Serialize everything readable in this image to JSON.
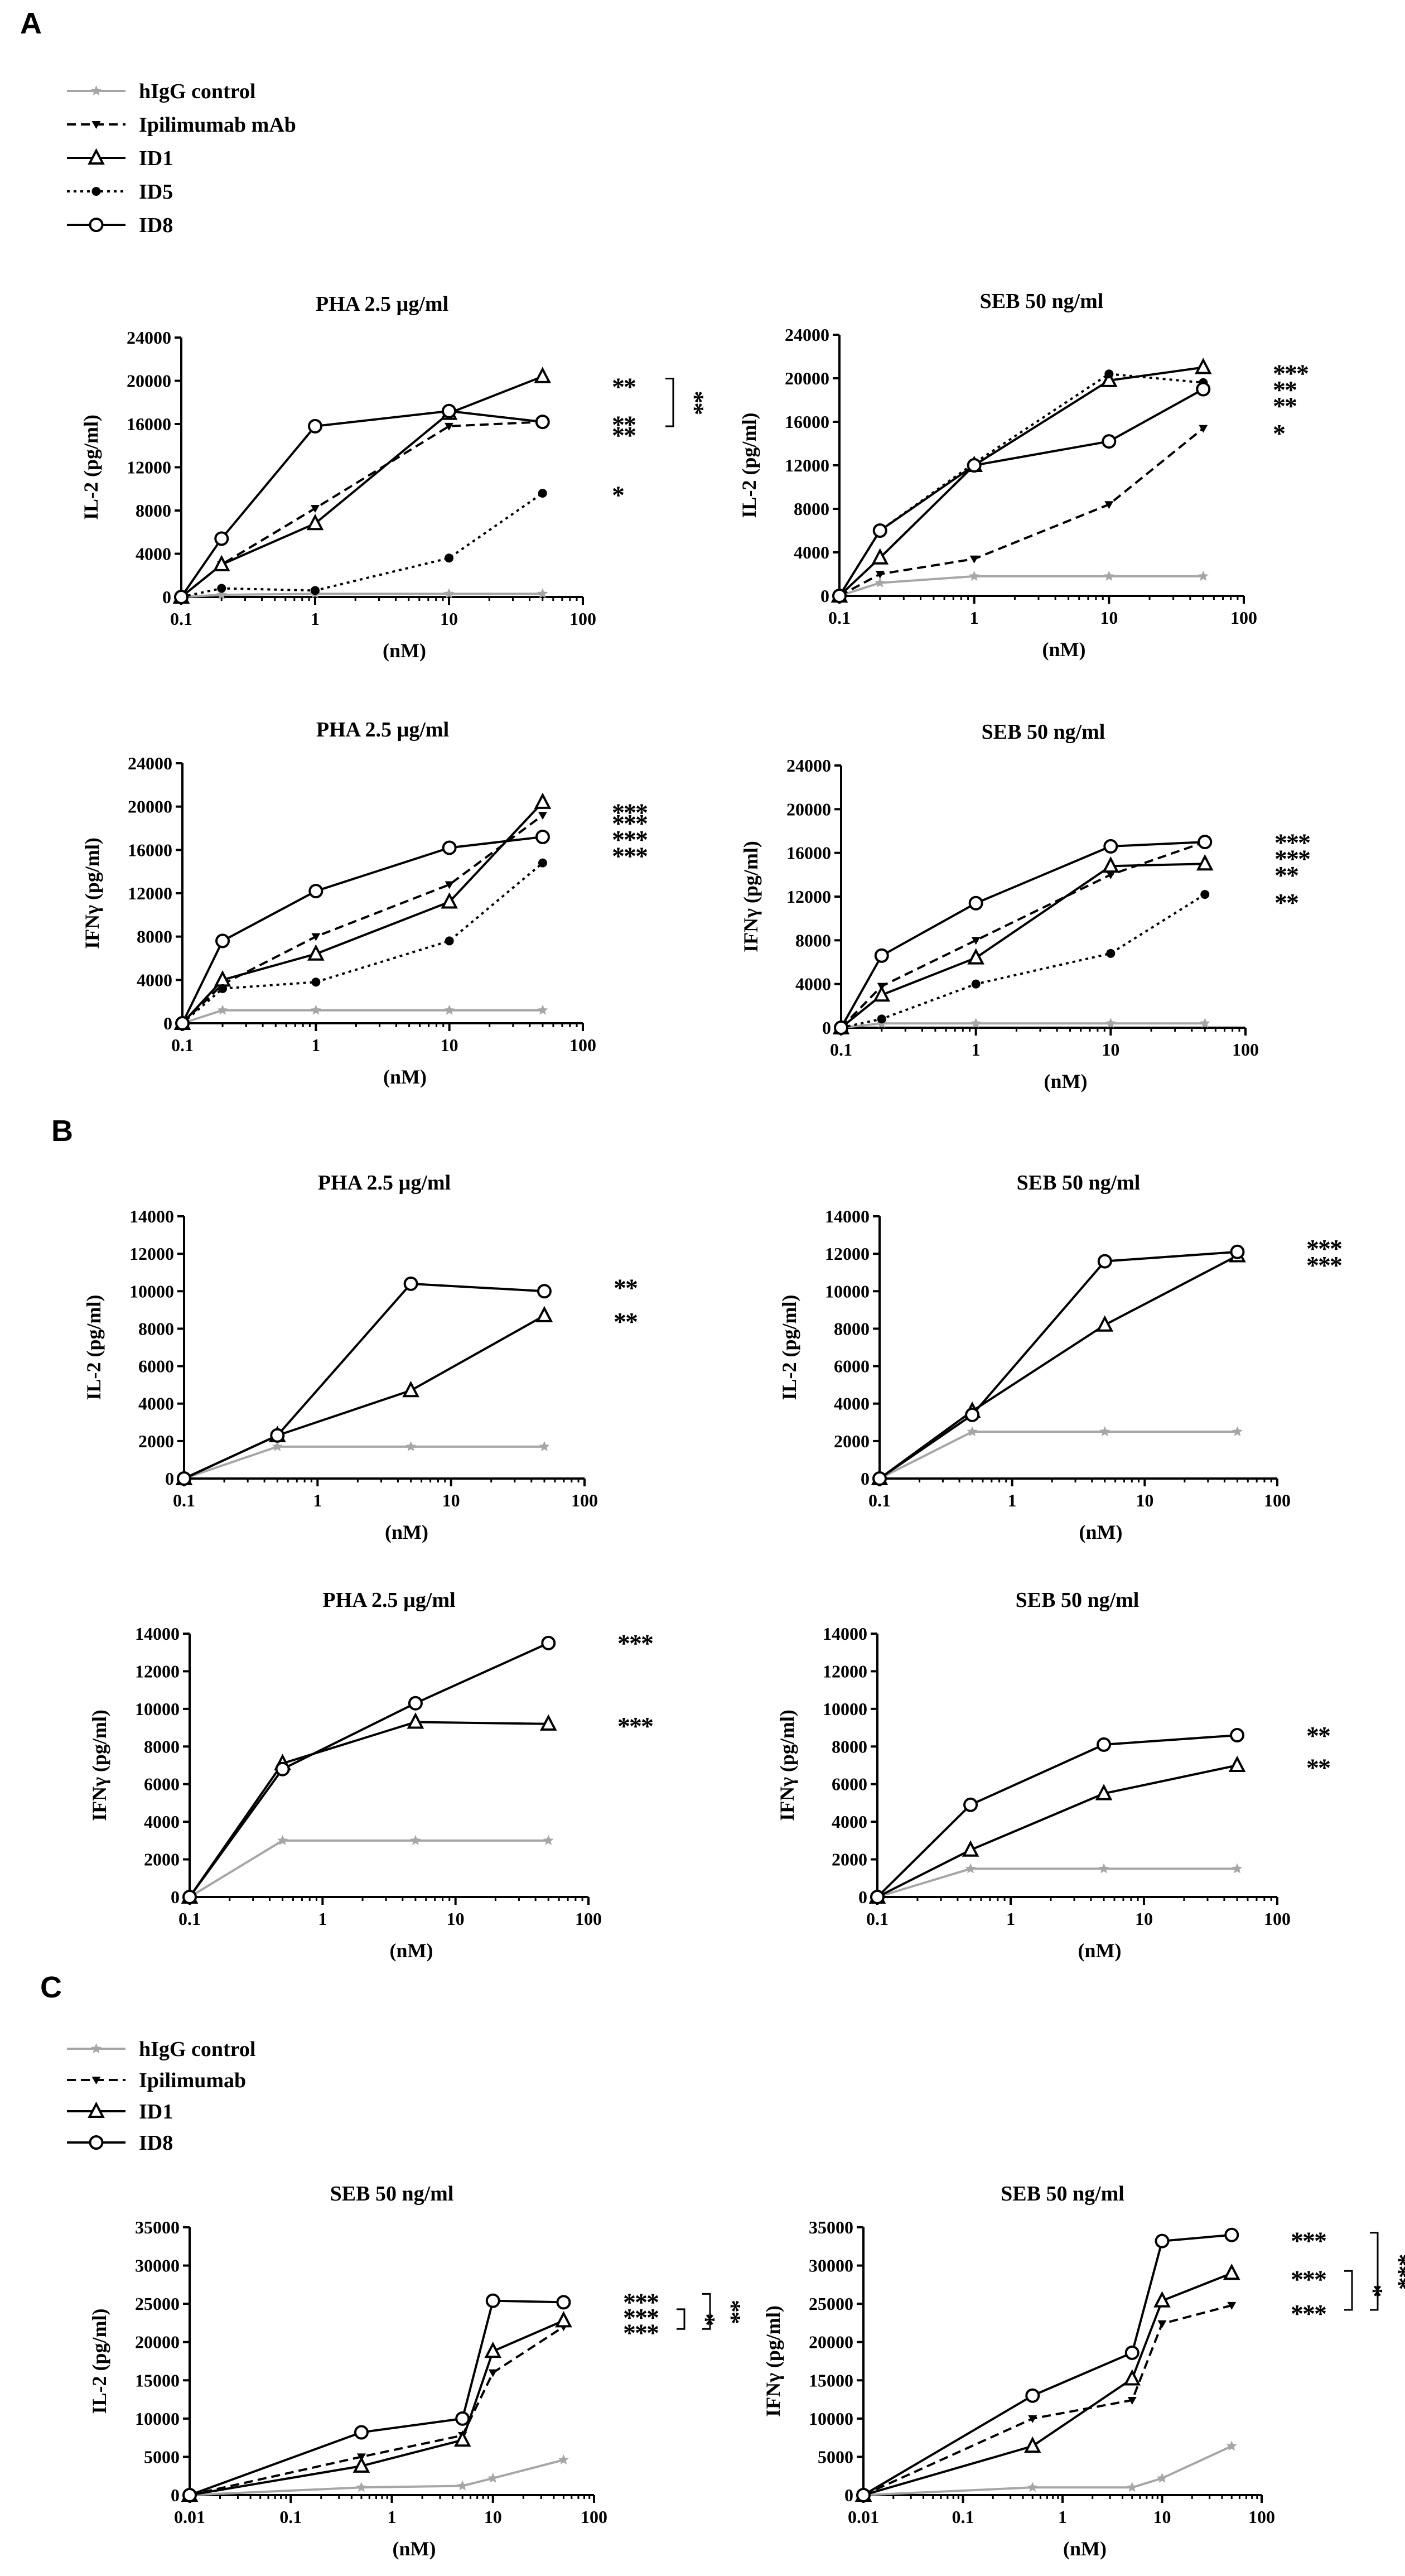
{
  "figure": {
    "panels": [
      "A",
      "B",
      "C"
    ]
  },
  "colors": {
    "black": "#000000",
    "gray": "#a6a6a6"
  },
  "legend_a": [
    {
      "label": "hIgG control",
      "series": "hIgG control"
    },
    {
      "label": "Ipilimumab mAb",
      "series": "Ipilimumab"
    },
    {
      "label": "ID1",
      "series": "ID1"
    },
    {
      "label": "ID5",
      "series": "ID5"
    },
    {
      "label": "ID8",
      "series": "ID8"
    }
  ],
  "legend_c": [
    {
      "label": "hIgG control",
      "series": "hIgG control"
    },
    {
      "label": "Ipilimumab",
      "series": "Ipilimumab"
    },
    {
      "label": "ID1",
      "series": "ID1"
    },
    {
      "label": "ID8",
      "series": "ID8"
    }
  ],
  "series_styles": {
    "hIgG control": {
      "color": "#a6a6a6",
      "dash": "solid",
      "marker": "star"
    },
    "Ipilimumab": {
      "color": "#000000",
      "dash": "dashed",
      "marker": "tri-down"
    },
    "ID1": {
      "color": "#000000",
      "dash": "solid",
      "marker": "triangle"
    },
    "ID5": {
      "color": "#000000",
      "dash": "dotted",
      "marker": "dot"
    },
    "ID8": {
      "color": "#000000",
      "dash": "solid",
      "marker": "circle"
    }
  },
  "chart_data": [
    {
      "id": "A1",
      "panel": "A",
      "type": "line",
      "title": "PHA 2.5 µg/ml",
      "xlabel": "(nM)",
      "ylabel": "IL-2 (pg/ml)",
      "xscale": "log",
      "xlim": [
        0.1,
        100
      ],
      "xticks": [
        "0.1",
        "1",
        "10",
        "100"
      ],
      "ylim": [
        0,
        24000
      ],
      "yticks": [
        "0",
        "4000",
        "8000",
        "12000",
        "16000",
        "20000",
        "24000"
      ],
      "x": [
        0.1,
        0.2,
        1,
        10,
        50
      ],
      "series": [
        {
          "name": "hIgG control",
          "values": [
            0,
            200,
            300,
            300,
            300
          ]
        },
        {
          "name": "Ipilimumab",
          "values": [
            0,
            3000,
            8200,
            15800,
            16200
          ]
        },
        {
          "name": "ID1",
          "values": [
            0,
            3000,
            6800,
            17000,
            20400
          ]
        },
        {
          "name": "ID5",
          "values": [
            0,
            800,
            600,
            3600,
            9600
          ]
        },
        {
          "name": "ID8",
          "values": [
            0,
            5400,
            15800,
            17200,
            16200
          ]
        }
      ],
      "significance": [
        {
          "text": "**",
          "y": 20000
        },
        {
          "text": "**",
          "y": 16500
        },
        {
          "text": "**",
          "y": 15500
        },
        {
          "text": "*",
          "y": 10000
        },
        {
          "text": "**",
          "bracket": [
            20000,
            16000
          ]
        }
      ]
    },
    {
      "id": "A2",
      "panel": "A",
      "type": "line",
      "title": "SEB 50 ng/ml",
      "xlabel": "(nM)",
      "ylabel": "IL-2 (pg/ml)",
      "xscale": "log",
      "xlim": [
        0.1,
        100
      ],
      "xticks": [
        "0.1",
        "1",
        "10",
        "100"
      ],
      "ylim": [
        0,
        24000
      ],
      "yticks": [
        "0",
        "4000",
        "8000",
        "12000",
        "16000",
        "20000",
        "24000"
      ],
      "x": [
        0.1,
        0.2,
        1,
        10,
        50
      ],
      "series": [
        {
          "name": "hIgG control",
          "values": [
            0,
            1200,
            1800,
            1800,
            1800
          ]
        },
        {
          "name": "Ipilimumab",
          "values": [
            0,
            2000,
            3400,
            8400,
            15400
          ]
        },
        {
          "name": "ID1",
          "values": [
            0,
            3500,
            12000,
            19800,
            21000
          ]
        },
        {
          "name": "ID5",
          "values": [
            0,
            6000,
            12200,
            20400,
            19600
          ]
        },
        {
          "name": "ID8",
          "values": [
            0,
            6000,
            12000,
            14200,
            19000
          ]
        }
      ],
      "significance": [
        {
          "text": "***",
          "y": 21000
        },
        {
          "text": "**",
          "y": 19500
        },
        {
          "text": "**",
          "y": 18000
        },
        {
          "text": "*",
          "y": 15500
        }
      ]
    },
    {
      "id": "A3",
      "panel": "A",
      "type": "line",
      "title": "PHA 2.5 µg/ml",
      "xlabel": "(nM)",
      "ylabel": "IFNγ (pg/ml)",
      "xscale": "log",
      "xlim": [
        0.1,
        100
      ],
      "xticks": [
        "0.1",
        "1",
        "10",
        "100"
      ],
      "ylim": [
        0,
        24000
      ],
      "yticks": [
        "0",
        "4000",
        "8000",
        "12000",
        "16000",
        "20000",
        "24000"
      ],
      "x": [
        0.1,
        0.2,
        1,
        10,
        50
      ],
      "series": [
        {
          "name": "hIgG control",
          "values": [
            0,
            1200,
            1200,
            1200,
            1200
          ]
        },
        {
          "name": "Ipilimumab",
          "values": [
            0,
            3600,
            8000,
            12800,
            19200
          ]
        },
        {
          "name": "ID1",
          "values": [
            0,
            4000,
            6400,
            11200,
            20400
          ]
        },
        {
          "name": "ID5",
          "values": [
            0,
            3200,
            3800,
            7600,
            14800
          ]
        },
        {
          "name": "ID8",
          "values": [
            0,
            7600,
            12200,
            16200,
            17200
          ]
        }
      ],
      "significance": [
        {
          "text": "***",
          "y": 20000
        },
        {
          "text": "***",
          "y": 19000
        },
        {
          "text": "***",
          "y": 17500
        },
        {
          "text": "***",
          "y": 16000
        }
      ]
    },
    {
      "id": "A4",
      "panel": "A",
      "type": "line",
      "title": "SEB 50 ng/ml",
      "xlabel": "(nM)",
      "ylabel": "IFNγ (pg/ml)",
      "xscale": "log",
      "xlim": [
        0.1,
        100
      ],
      "xticks": [
        "0.1",
        "1",
        "10",
        "100"
      ],
      "ylim": [
        0,
        24000
      ],
      "yticks": [
        "0",
        "4000",
        "8000",
        "12000",
        "16000",
        "20000",
        "24000"
      ],
      "x": [
        0.1,
        0.2,
        1,
        10,
        50
      ],
      "series": [
        {
          "name": "hIgG control",
          "values": [
            0,
            400,
            400,
            400,
            400
          ]
        },
        {
          "name": "Ipilimumab",
          "values": [
            0,
            3800,
            8000,
            14000,
            17000
          ]
        },
        {
          "name": "ID1",
          "values": [
            0,
            3000,
            6400,
            14800,
            15000
          ]
        },
        {
          "name": "ID5",
          "values": [
            0,
            800,
            4000,
            6800,
            12200
          ]
        },
        {
          "name": "ID8",
          "values": [
            0,
            6600,
            11400,
            16600,
            17000
          ]
        }
      ],
      "significance": [
        {
          "text": "***",
          "y": 17500
        },
        {
          "text": "***",
          "y": 16000
        },
        {
          "text": "**",
          "y": 14500
        },
        {
          "text": "**",
          "y": 12000
        }
      ]
    },
    {
      "id": "B1",
      "panel": "B",
      "type": "line",
      "title": "PHA 2.5 µg/ml",
      "xlabel": "(nM)",
      "ylabel": "IL-2 (pg/ml)",
      "xscale": "log",
      "xlim": [
        0.1,
        100
      ],
      "xticks": [
        "0.1",
        "1",
        "10",
        "100"
      ],
      "ylim": [
        0,
        14000
      ],
      "yticks": [
        "0",
        "2000",
        "4000",
        "6000",
        "8000",
        "10000",
        "12000",
        "14000"
      ],
      "x": [
        0.1,
        0.5,
        5,
        50
      ],
      "series": [
        {
          "name": "hIgG control",
          "values": [
            0,
            1700,
            1700,
            1700
          ]
        },
        {
          "name": "ID1",
          "values": [
            0,
            2300,
            4700,
            8700
          ]
        },
        {
          "name": "ID8",
          "values": [
            0,
            2300,
            10400,
            10000
          ]
        }
      ],
      "significance": [
        {
          "text": "**",
          "y": 10500
        },
        {
          "text": "**",
          "y": 8700
        }
      ]
    },
    {
      "id": "B2",
      "panel": "B",
      "type": "line",
      "title": "SEB 50 ng/ml",
      "xlabel": "(nM)",
      "ylabel": "IL-2 (pg/ml)",
      "xscale": "log",
      "xlim": [
        0.1,
        100
      ],
      "xticks": [
        "0.1",
        "1",
        "10",
        "100"
      ],
      "ylim": [
        0,
        14000
      ],
      "yticks": [
        "0",
        "2000",
        "4000",
        "6000",
        "8000",
        "10000",
        "12000",
        "14000"
      ],
      "x": [
        0.1,
        0.5,
        5,
        50
      ],
      "series": [
        {
          "name": "hIgG control",
          "values": [
            0,
            2500,
            2500,
            2500
          ]
        },
        {
          "name": "ID1",
          "values": [
            0,
            3600,
            8200,
            11900
          ]
        },
        {
          "name": "ID8",
          "values": [
            0,
            3400,
            11600,
            12100
          ]
        }
      ],
      "significance": [
        {
          "text": "***",
          "y": 12600
        },
        {
          "text": "***",
          "y": 11700
        }
      ]
    },
    {
      "id": "B3",
      "panel": "B",
      "type": "line",
      "title": "PHA 2.5 µg/ml",
      "xlabel": "(nM)",
      "ylabel": "IFNγ (pg/ml)",
      "xscale": "log",
      "xlim": [
        0.1,
        100
      ],
      "xticks": [
        "0.1",
        "1",
        "10",
        "100"
      ],
      "ylim": [
        0,
        14000
      ],
      "yticks": [
        "0",
        "2000",
        "4000",
        "6000",
        "8000",
        "10000",
        "12000",
        "14000"
      ],
      "x": [
        0.1,
        0.5,
        5,
        50
      ],
      "series": [
        {
          "name": "hIgG control",
          "values": [
            0,
            3000,
            3000,
            3000
          ]
        },
        {
          "name": "ID1",
          "values": [
            0,
            7100,
            9300,
            9200
          ]
        },
        {
          "name": "ID8",
          "values": [
            0,
            6800,
            10300,
            13500
          ]
        }
      ],
      "significance": [
        {
          "text": "***",
          "y": 13800
        },
        {
          "text": "***",
          "y": 9400
        }
      ]
    },
    {
      "id": "B4",
      "panel": "B",
      "type": "line",
      "title": "SEB 50 ng/ml",
      "xlabel": "(nM)",
      "ylabel": "IFNγ (pg/ml)",
      "xscale": "log",
      "xlim": [
        0.1,
        100
      ],
      "xticks": [
        "0.1",
        "1",
        "10",
        "100"
      ],
      "ylim": [
        0,
        14000
      ],
      "yticks": [
        "0",
        "2000",
        "4000",
        "6000",
        "8000",
        "10000",
        "12000",
        "14000"
      ],
      "x": [
        0.1,
        0.5,
        5,
        50
      ],
      "series": [
        {
          "name": "hIgG control",
          "values": [
            0,
            1500,
            1500,
            1500
          ]
        },
        {
          "name": "ID1",
          "values": [
            0,
            2500,
            5500,
            7000
          ]
        },
        {
          "name": "ID8",
          "values": [
            0,
            4900,
            8100,
            8600
          ]
        }
      ],
      "significance": [
        {
          "text": "**",
          "y": 8900
        },
        {
          "text": "**",
          "y": 7200
        }
      ]
    },
    {
      "id": "C1",
      "panel": "C",
      "type": "line",
      "title": "SEB 50 ng/ml",
      "xlabel": "(nM)",
      "ylabel": "IL-2 (pg/ml)",
      "xscale": "log",
      "xlim": [
        0.01,
        100
      ],
      "xticks": [
        "0.01",
        "0.1",
        "1",
        "10",
        "100"
      ],
      "ylim": [
        0,
        35000
      ],
      "yticks": [
        "0",
        "5000",
        "10000",
        "15000",
        "20000",
        "25000",
        "30000",
        "35000"
      ],
      "x": [
        0.01,
        0.5,
        5,
        10,
        50
      ],
      "series": [
        {
          "name": "hIgG control",
          "values": [
            0,
            1000,
            1200,
            2200,
            4600
          ]
        },
        {
          "name": "Ipilimumab",
          "values": [
            0,
            5000,
            7800,
            16000,
            22000
          ]
        },
        {
          "name": "ID1",
          "values": [
            0,
            3800,
            7200,
            18800,
            22800
          ]
        },
        {
          "name": "ID8",
          "values": [
            0,
            8200,
            10000,
            25400,
            25200
          ]
        }
      ],
      "significance": [
        {
          "text": "***",
          "y": 26000
        },
        {
          "text": "***",
          "y": 24000
        },
        {
          "text": "***",
          "y": 22000
        },
        {
          "text": "*",
          "bracket": [
            24000,
            22000
          ]
        },
        {
          "text": "**",
          "bracket": [
            26000,
            22000
          ]
        }
      ]
    },
    {
      "id": "C2",
      "panel": "C",
      "type": "line",
      "title": "SEB 50 ng/ml",
      "xlabel": "(nM)",
      "ylabel": "IFNγ (pg/ml)",
      "xscale": "log",
      "xlim": [
        0.01,
        100
      ],
      "xticks": [
        "0.01",
        "0.1",
        "1",
        "10",
        "100"
      ],
      "ylim": [
        0,
        35000
      ],
      "yticks": [
        "0",
        "5000",
        "10000",
        "15000",
        "20000",
        "25000",
        "30000",
        "35000"
      ],
      "x": [
        0.01,
        0.5,
        5,
        10,
        50
      ],
      "series": [
        {
          "name": "hIgG control",
          "values": [
            0,
            1000,
            1000,
            2200,
            6400
          ]
        },
        {
          "name": "Ipilimumab",
          "values": [
            0,
            10000,
            12400,
            22400,
            24800
          ]
        },
        {
          "name": "ID1",
          "values": [
            0,
            6400,
            15200,
            25400,
            29000
          ]
        },
        {
          "name": "ID8",
          "values": [
            0,
            13000,
            18600,
            33200,
            34000
          ]
        }
      ],
      "significance": [
        {
          "text": "***",
          "y": 34000
        },
        {
          "text": "***",
          "y": 29000
        },
        {
          "text": "***",
          "y": 24500
        },
        {
          "text": "*",
          "bracket": [
            29000,
            24500
          ]
        },
        {
          "text": "***",
          "bracket": [
            34000,
            24500
          ]
        }
      ]
    }
  ]
}
